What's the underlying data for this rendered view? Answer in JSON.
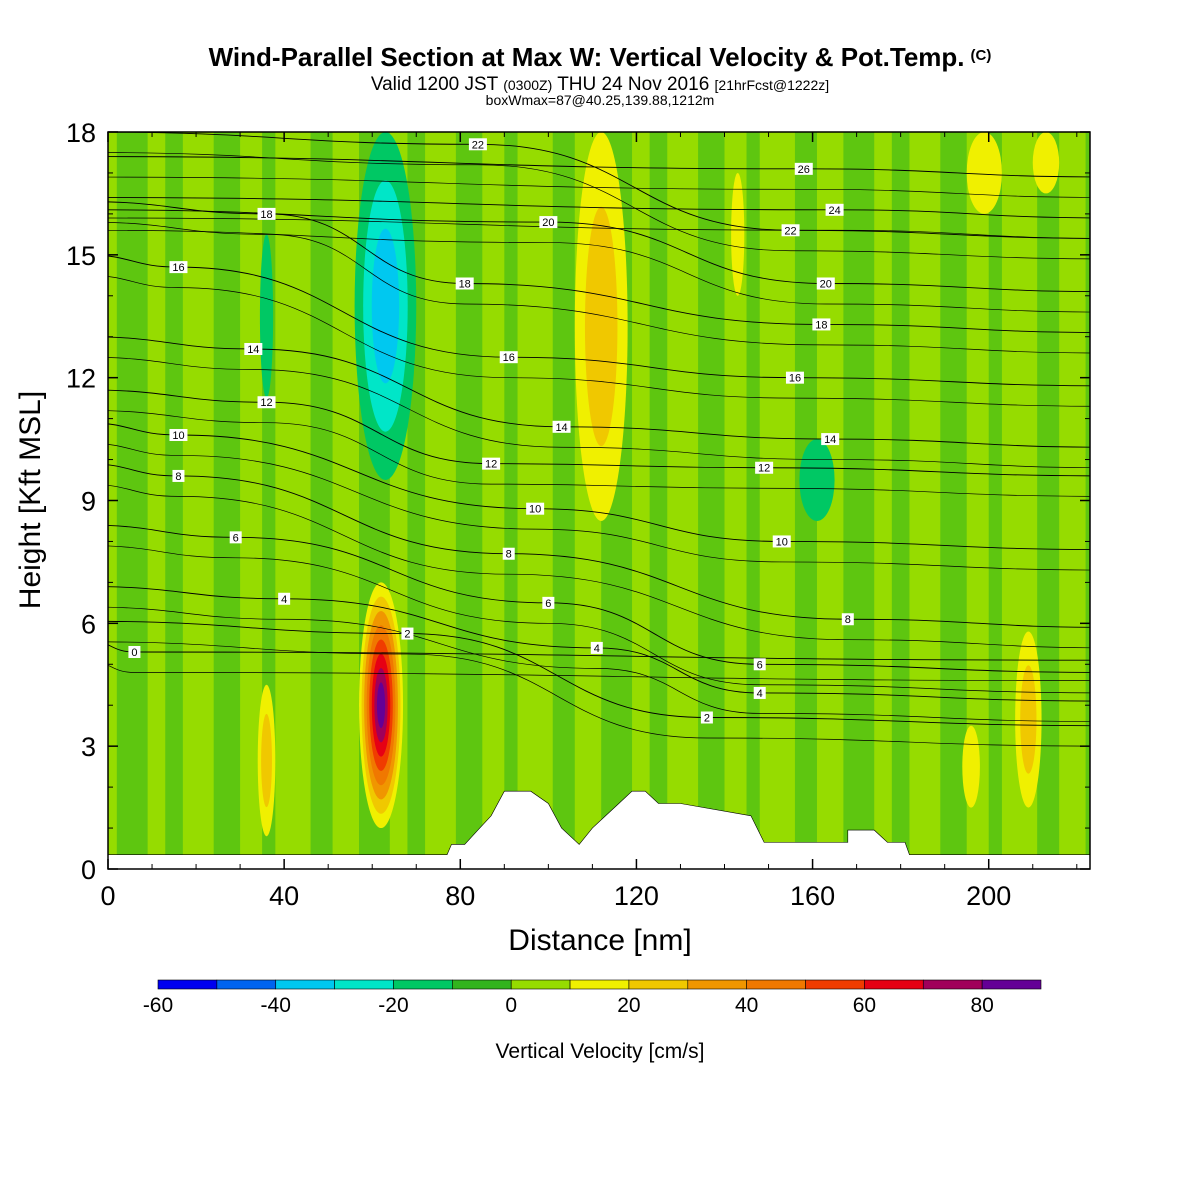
{
  "header": {
    "title": "Wind-Parallel Section at Max W: Vertical Velocity & Pot.Temp.",
    "title_mark": "(C)",
    "valid_prefix": "Valid 1200 JST",
    "valid_utc": "(0300Z)",
    "valid_date": "THU 24 Nov 2016",
    "forecast": "[21hrFcst@1222z]",
    "box_info": "boxWmax=87@40.25,139.88,1212m"
  },
  "chart_data": {
    "type": "heatmap",
    "xlabel": "Distance [nm]",
    "ylabel": "Height [Kft MSL]",
    "xlim": [
      0,
      223
    ],
    "ylim": [
      0,
      18
    ],
    "x_ticks": [
      0,
      40,
      80,
      120,
      160,
      200
    ],
    "y_ticks": [
      0,
      3,
      6,
      9,
      12,
      15,
      18
    ],
    "colorbar": {
      "label": "Vertical Velocity [cm/s]",
      "bounds": [
        -60,
        -50,
        -40,
        -30,
        -20,
        -10,
        0,
        10,
        20,
        30,
        40,
        50,
        60,
        70,
        80,
        90
      ],
      "tick_values": [
        -60,
        -40,
        -20,
        0,
        20,
        40,
        60,
        80
      ],
      "colors": [
        "#0000f0",
        "#0064f0",
        "#00c8f0",
        "#00e6c8",
        "#00c864",
        "#32b41e",
        "#96dc00",
        "#f0f000",
        "#f0c800",
        "#f09600",
        "#f07800",
        "#f03c00",
        "#e60014",
        "#a0005a",
        "#640096"
      ]
    },
    "background_class": "0 to 10 cm/s",
    "velocity_regions": [
      {
        "type": "updraft",
        "x_center": 62,
        "x_halfwidth": 5,
        "y_bottom": 1.0,
        "y_top": 7.0,
        "max_cm_s": 87
      },
      {
        "type": "downdraft",
        "x_center": 63,
        "x_halfwidth": 7,
        "y_bottom": 9.5,
        "y_top": 18,
        "min_cm_s": -35
      },
      {
        "type": "updraft",
        "x_center": 112,
        "x_halfwidth": 6,
        "y_bottom": 8.5,
        "y_top": 18,
        "max_cm_s": 28
      },
      {
        "type": "updraft",
        "x_center": 36,
        "x_halfwidth": 2,
        "y_bottom": 0.8,
        "y_top": 4.5,
        "max_cm_s": 22
      },
      {
        "type": "updraft",
        "x_center": 209,
        "x_halfwidth": 3,
        "y_bottom": 1.5,
        "y_top": 5.8,
        "max_cm_s": 25
      },
      {
        "type": "updraft",
        "x_center": 196,
        "x_halfwidth": 2,
        "y_bottom": 1.5,
        "y_top": 3.5,
        "max_cm_s": 15
      },
      {
        "type": "updraft",
        "x_center": 199,
        "x_halfwidth": 4,
        "y_bottom": 16,
        "y_top": 18,
        "max_cm_s": 15
      },
      {
        "type": "updraft",
        "x_center": 213,
        "x_halfwidth": 3,
        "y_bottom": 16.5,
        "y_top": 18,
        "max_cm_s": 15
      },
      {
        "type": "updraft",
        "x_center": 143,
        "x_halfwidth": 1.5,
        "y_bottom": 14,
        "y_top": 17,
        "max_cm_s": 15
      },
      {
        "type": "downdraft",
        "x_center": 36,
        "x_halfwidth": 1.5,
        "y_bottom": 11.5,
        "y_top": 15.5,
        "min_cm_s": -15
      },
      {
        "type": "downdraft",
        "x_center": 161,
        "x_halfwidth": 4,
        "y_bottom": 8.5,
        "y_top": 10.5,
        "min_cm_s": -15
      }
    ],
    "terrain_profile": {
      "x": [
        0,
        77,
        78,
        81,
        84,
        87,
        90,
        96,
        100,
        103,
        107,
        110,
        113,
        116,
        119,
        122,
        125,
        127,
        130,
        146,
        149,
        168,
        168,
        174,
        177,
        181,
        182,
        223
      ],
      "height": [
        0.35,
        0.35,
        0.6,
        0.6,
        0.95,
        1.3,
        1.9,
        1.9,
        1.6,
        1.0,
        0.6,
        1.0,
        1.3,
        1.6,
        1.9,
        1.9,
        1.6,
        1.6,
        1.6,
        1.3,
        0.65,
        0.65,
        0.95,
        0.95,
        0.65,
        0.65,
        0.35,
        0.35
      ]
    },
    "potential_temperature_contours": {
      "unit": "C",
      "labels": [
        {
          "text": "0",
          "x": 6,
          "y": 5.3
        },
        {
          "text": "2",
          "x": 68,
          "y": 5.75
        },
        {
          "text": "2",
          "x": 136,
          "y": 3.7
        },
        {
          "text": "4",
          "x": 40,
          "y": 6.6
        },
        {
          "text": "4",
          "x": 111,
          "y": 5.4
        },
        {
          "text": "4",
          "x": 148,
          "y": 4.3
        },
        {
          "text": "6",
          "x": 29,
          "y": 8.1
        },
        {
          "text": "6",
          "x": 100,
          "y": 6.5
        },
        {
          "text": "6",
          "x": 148,
          "y": 5.0
        },
        {
          "text": "8",
          "x": 16,
          "y": 9.6
        },
        {
          "text": "8",
          "x": 91,
          "y": 7.7
        },
        {
          "text": "8",
          "x": 168,
          "y": 6.1
        },
        {
          "text": "10",
          "x": 16,
          "y": 10.6
        },
        {
          "text": "10",
          "x": 97,
          "y": 8.8
        },
        {
          "text": "10",
          "x": 153,
          "y": 8.0
        },
        {
          "text": "12",
          "x": 36,
          "y": 11.4
        },
        {
          "text": "12",
          "x": 87,
          "y": 9.9
        },
        {
          "text": "12",
          "x": 149,
          "y": 9.8
        },
        {
          "text": "14",
          "x": 33,
          "y": 12.7
        },
        {
          "text": "14",
          "x": 103,
          "y": 10.8
        },
        {
          "text": "14",
          "x": 164,
          "y": 10.5
        },
        {
          "text": "16",
          "x": 16,
          "y": 14.7
        },
        {
          "text": "16",
          "x": 91,
          "y": 12.5
        },
        {
          "text": "16",
          "x": 156,
          "y": 12.0
        },
        {
          "text": "18",
          "x": 36,
          "y": 16.0
        },
        {
          "text": "18",
          "x": 81,
          "y": 14.3
        },
        {
          "text": "18",
          "x": 162,
          "y": 13.3
        },
        {
          "text": "20",
          "x": 100,
          "y": 15.8
        },
        {
          "text": "20",
          "x": 163,
          "y": 14.3
        },
        {
          "text": "22",
          "x": 84,
          "y": 17.7
        },
        {
          "text": "22",
          "x": 155,
          "y": 15.6
        },
        {
          "text": "24",
          "x": 165,
          "y": 16.1
        },
        {
          "text": "26",
          "x": 158,
          "y": 17.1
        }
      ]
    }
  }
}
